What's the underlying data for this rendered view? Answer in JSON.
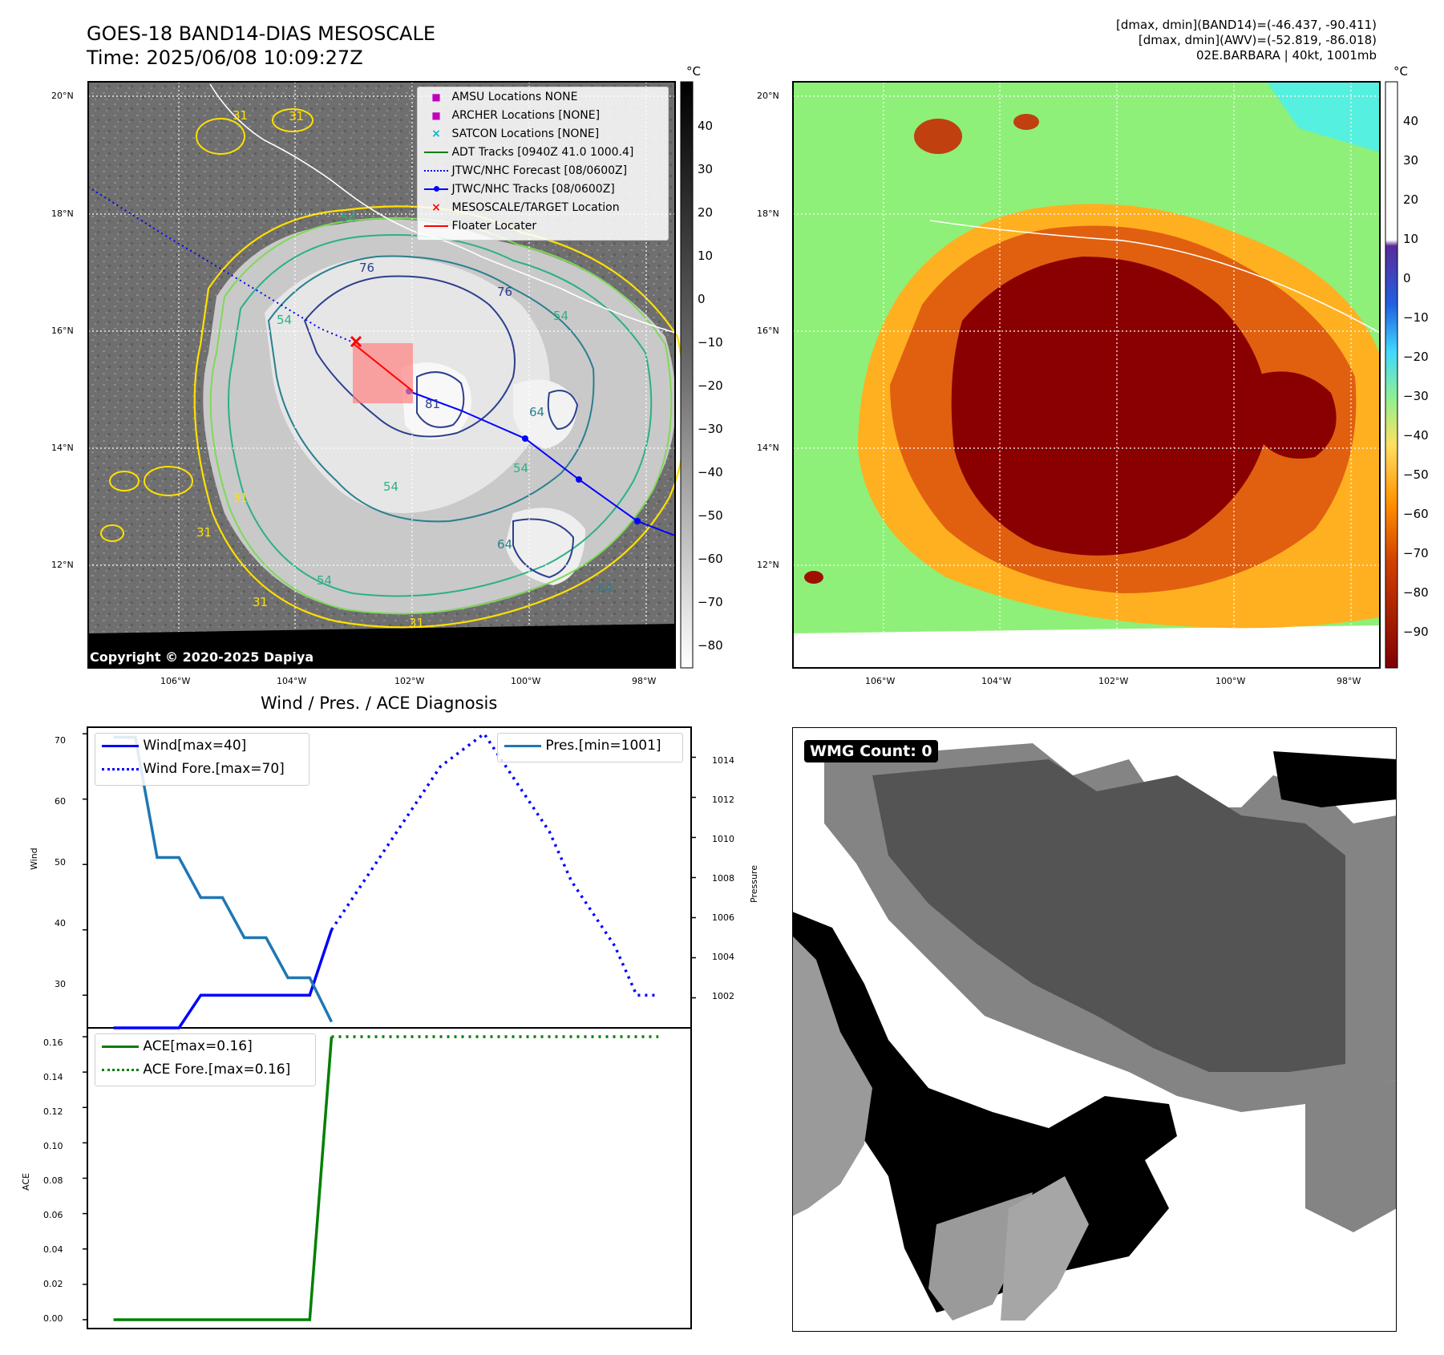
{
  "header": {
    "title": "GOES-18 BAND14-DIAS MESOSCALE",
    "time": "Time: 2025/06/08 10:09:27Z",
    "stats_band14": "[dmax, dmin](BAND14)=(-46.437, -90.411)",
    "stats_awv": "[dmax, dmin](AWV)=(-52.819, -86.018)",
    "storm": "02E.BARBARA | 40kt, 1001mb"
  },
  "map_ir": {
    "lat_labels": [
      "20°N",
      "18°N",
      "16°N",
      "14°N",
      "12°N"
    ],
    "lon_labels": [
      "106°W",
      "104°W",
      "102°W",
      "100°W",
      "98°W"
    ],
    "copyright": "Copyright © 2020-2025 Dapiya",
    "colorbar_unit": "°C",
    "colorbar_ticks": [
      "40",
      "30",
      "20",
      "10",
      "0",
      "−10",
      "−20",
      "−30",
      "−40",
      "−50",
      "−60",
      "−70",
      "−80"
    ],
    "contour_labels": [
      "31",
      "31",
      "31",
      "54",
      "54",
      "54",
      "54",
      "54",
      "54",
      "76",
      "76",
      "81",
      "64",
      "64",
      "64",
      "31",
      "31",
      "31"
    ],
    "legend": [
      {
        "label": "AMSU Locations NONE",
        "color": "#c000c0",
        "marker": "square"
      },
      {
        "label": "ARCHER Locations [NONE]",
        "color": "#c000c0",
        "marker": "square"
      },
      {
        "label": "SATCON Locations [NONE]",
        "color": "#00b8c8",
        "marker": "x"
      },
      {
        "label": "ADT Tracks [0940Z 41.0 1000.4]",
        "color": "#008000",
        "marker": "line"
      },
      {
        "label": "JTWC/NHC Forecast [08/0600Z]",
        "color": "#0000ff",
        "marker": "dotted"
      },
      {
        "label": "JTWC/NHC Tracks [08/0600Z]",
        "color": "#0000ff",
        "marker": "line-dot"
      },
      {
        "label": "MESOSCALE/TARGET Location",
        "color": "#ff0000",
        "marker": "x"
      },
      {
        "label": "Floater Locater",
        "color": "#ff0000",
        "marker": "line"
      }
    ]
  },
  "map_awv": {
    "lat_labels": [
      "20°N",
      "18°N",
      "16°N",
      "14°N",
      "12°N"
    ],
    "lon_labels": [
      "106°W",
      "104°W",
      "102°W",
      "100°W",
      "98°W"
    ],
    "colorbar_unit": "°C",
    "colorbar_ticks": [
      "40",
      "30",
      "20",
      "10",
      "0",
      "−10",
      "−20",
      "−30",
      "−40",
      "−50",
      "−60",
      "−70",
      "−80",
      "−90"
    ]
  },
  "diag": {
    "title": "Wind / Pres. / ACE Diagnosis",
    "wind_legend": [
      "Wind[max=40]",
      "Wind Fore.[max=70]"
    ],
    "pres_legend": "Pres.[min=1001]",
    "ace_legend": [
      "ACE[max=0.16]",
      "ACE Fore.[max=0.16]"
    ],
    "wind_ylabel": "Wind",
    "pres_ylabel": "Pressure",
    "ace_ylabel": "ACE",
    "wind_ticks": [
      "70",
      "60",
      "50",
      "40",
      "30"
    ],
    "pres_ticks": [
      "1014",
      "1012",
      "1010",
      "1008",
      "1006",
      "1004",
      "1002"
    ],
    "ace_ticks": [
      "0.16",
      "0.14",
      "0.12",
      "0.10",
      "0.08",
      "0.06",
      "0.04",
      "0.02",
      "0.00"
    ]
  },
  "wmg": {
    "label": "WMG Count: 0"
  },
  "chart_data": [
    {
      "type": "line",
      "title": "Wind / Pres. / ACE Diagnosis",
      "ylabel": "Wind",
      "ylim": [
        25,
        71
      ],
      "series": [
        {
          "name": "Wind[max=40]",
          "x": [
            0,
            1,
            2,
            3,
            4,
            5,
            6,
            7,
            8,
            9,
            10
          ],
          "values": [
            25,
            25,
            25,
            25,
            30,
            30,
            30,
            30,
            30,
            30,
            40
          ]
        },
        {
          "name": "Wind Fore.[max=70]",
          "x": [
            10,
            11,
            12,
            13,
            14,
            15,
            16,
            17,
            18,
            19,
            20,
            21,
            22,
            23,
            24,
            25
          ],
          "values": [
            40,
            45,
            50,
            55,
            60,
            65,
            67.5,
            70,
            65,
            60,
            55,
            47.5,
            42.5,
            37.5,
            30,
            30
          ]
        }
      ]
    },
    {
      "type": "line",
      "ylabel": "Pressure",
      "ylim": [
        1000.5,
        1015.5
      ],
      "series": [
        {
          "name": "Pres.[min=1001]",
          "x": [
            0,
            1,
            2,
            3,
            4,
            5,
            6,
            7,
            8,
            9,
            10
          ],
          "values": [
            1015,
            1015,
            1009,
            1009,
            1007,
            1007,
            1005,
            1005,
            1003,
            1003,
            1000.8
          ]
        }
      ]
    },
    {
      "type": "line",
      "ylabel": "ACE",
      "ylim": [
        -0.005,
        0.165
      ],
      "series": [
        {
          "name": "ACE[max=0.16]",
          "x": [
            0,
            1,
            2,
            3,
            4,
            5,
            6,
            7,
            8,
            9,
            10
          ],
          "values": [
            0,
            0,
            0,
            0,
            0,
            0,
            0,
            0,
            0,
            0,
            0.16
          ]
        },
        {
          "name": "ACE Fore.[max=0.16]",
          "x": [
            10,
            25
          ],
          "values": [
            0.16,
            0.16
          ]
        }
      ]
    }
  ]
}
